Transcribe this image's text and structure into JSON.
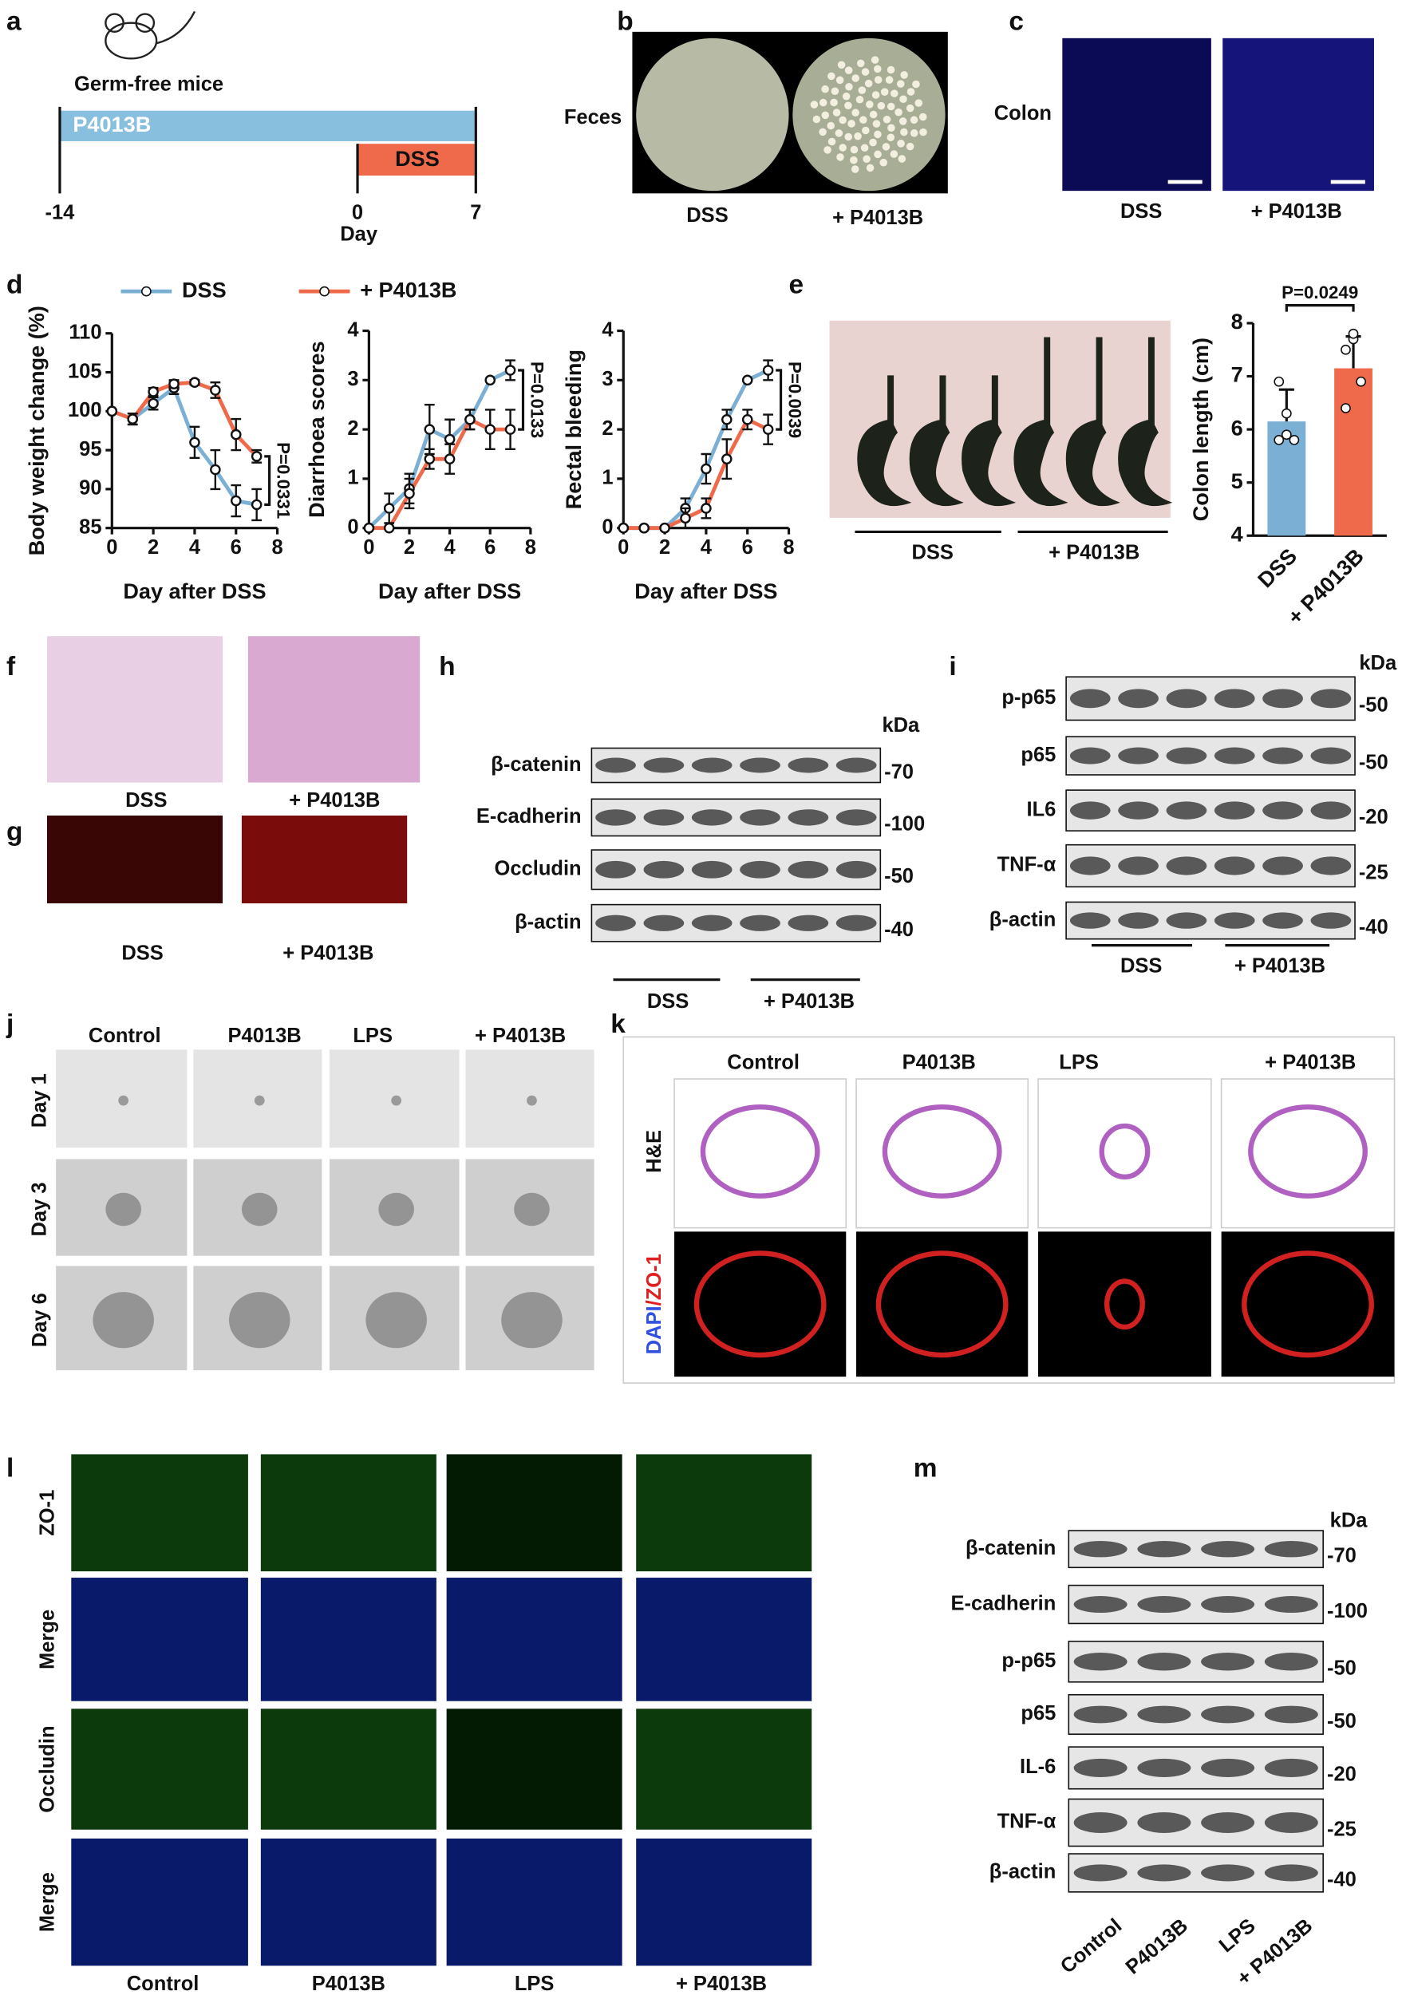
{
  "panel_labels": [
    "a",
    "b",
    "c",
    "d",
    "e",
    "f",
    "g",
    "h",
    "i",
    "j",
    "k",
    "l",
    "m"
  ],
  "a": {
    "title": "Germ-free mice",
    "bar1": "P4013B",
    "bar2": "DSS",
    "ticks": [
      "-14",
      "0",
      "7"
    ],
    "axis": "Day"
  },
  "b": {
    "row": "Feces",
    "cols": [
      "DSS",
      "+ P4013B"
    ]
  },
  "c": {
    "row": "Colon",
    "cols": [
      "DSS",
      "+ P4013B"
    ]
  },
  "e": {
    "groups": [
      "DSS",
      "+ P4013B"
    ]
  },
  "f": {
    "cols": [
      "DSS",
      "+ P4013B"
    ]
  },
  "g": {
    "cols": [
      "DSS",
      "+ P4013B"
    ]
  },
  "h": {
    "unit": "kDa",
    "rows": [
      {
        "name": "β-catenin",
        "kda": "-70"
      },
      {
        "name": "E-cadherin",
        "kda": "-100"
      },
      {
        "name": "Occludin",
        "kda": "-50"
      },
      {
        "name": "β-actin",
        "kda": "-40"
      }
    ],
    "groups": [
      "DSS",
      "+ P4013B"
    ]
  },
  "i": {
    "unit": "kDa",
    "rows": [
      {
        "name": "p-p65",
        "kda": "-50"
      },
      {
        "name": "p65",
        "kda": "-50"
      },
      {
        "name": "IL6",
        "kda": "-20"
      },
      {
        "name": "TNF-α",
        "kda": "-25"
      },
      {
        "name": "β-actin",
        "kda": "-40"
      }
    ],
    "groups": [
      "DSS",
      "+ P4013B"
    ]
  },
  "j": {
    "cols": [
      "Control",
      "P4013B",
      "LPS",
      "+ P4013B"
    ],
    "rows": [
      "Day 1",
      "Day 3",
      "Day 6"
    ]
  },
  "k": {
    "cols": [
      "Control",
      "P4013B",
      "LPS",
      "+ P4013B"
    ],
    "rows": [
      "H&E"
    ],
    "stain": [
      "DAPI",
      "/ZO-1"
    ]
  },
  "l": {
    "rows": [
      "ZO-1",
      "Merge",
      "Occludin",
      "Merge"
    ],
    "cols": [
      "Control",
      "P4013B",
      "LPS",
      "+ P4013B"
    ]
  },
  "m": {
    "unit": "kDa",
    "rows": [
      {
        "name": "β-catenin",
        "kda": "-70"
      },
      {
        "name": "E-cadherin",
        "kda": "-100"
      },
      {
        "name": "p-p65",
        "kda": "-50"
      },
      {
        "name": "p65",
        "kda": "-50"
      },
      {
        "name": "IL-6",
        "kda": "-20"
      },
      {
        "name": "TNF-α",
        "kda": "-25"
      },
      {
        "name": "β-actin",
        "kda": "-40"
      }
    ],
    "lanes": [
      "Control",
      "P4013B",
      "LPS",
      "+ P4013B"
    ]
  },
  "chart_data": [
    {
      "type": "line",
      "ylabel": "Body weight change (%)",
      "xlabel": "Day after DSS",
      "annotation": "P=0.0331",
      "x": [
        0,
        1,
        2,
        3,
        4,
        5,
        6,
        7
      ],
      "xlim": [
        0,
        8
      ],
      "xticks": [
        0,
        2,
        4,
        6,
        8
      ],
      "ylim": [
        85,
        110
      ],
      "yticks": [
        85,
        90,
        95,
        100,
        105,
        110
      ],
      "series": [
        {
          "name": "DSS",
          "color": "#7bafd4",
          "values": [
            100,
            99,
            101,
            103,
            96,
            92.5,
            88.5,
            88
          ],
          "errors": [
            0,
            0.7,
            0.8,
            0.8,
            2,
            2.5,
            2,
            2
          ]
        },
        {
          "name": "+ P4013B",
          "color": "#ef6a4b",
          "values": [
            100,
            99,
            102.5,
            103.5,
            103.7,
            102.7,
            97,
            94.2
          ],
          "errors": [
            0,
            0.7,
            0.5,
            0.5,
            0.3,
            1,
            2,
            0.8
          ]
        }
      ]
    },
    {
      "type": "line",
      "ylabel": "Diarrhoea scores",
      "xlabel": "Day after DSS",
      "annotation": "P=0.0133",
      "x": [
        0,
        1,
        2,
        3,
        4,
        5,
        6,
        7
      ],
      "xlim": [
        0,
        8
      ],
      "xticks": [
        0,
        2,
        4,
        6,
        8
      ],
      "ylim": [
        0,
        4
      ],
      "yticks": [
        0,
        1,
        2,
        3,
        4
      ],
      "series": [
        {
          "name": "DSS",
          "color": "#7bafd4",
          "values": [
            0,
            0.4,
            0.8,
            2,
            1.8,
            2.2,
            3,
            3.2
          ],
          "errors": [
            0,
            0.3,
            0.3,
            0.5,
            0.4,
            0.2,
            0,
            0.2
          ]
        },
        {
          "name": "+ P4013B",
          "color": "#ef6a4b",
          "values": [
            0,
            0,
            0.7,
            1.4,
            1.4,
            2.2,
            2,
            2
          ],
          "errors": [
            0,
            0,
            0.3,
            0.2,
            0.3,
            0.2,
            0.4,
            0.4
          ]
        }
      ]
    },
    {
      "type": "line",
      "ylabel": "Rectal bleeding",
      "xlabel": "Day after DSS",
      "annotation": "P=0.0039",
      "x": [
        0,
        1,
        2,
        3,
        4,
        5,
        6,
        7
      ],
      "xlim": [
        0,
        8
      ],
      "xticks": [
        0,
        2,
        4,
        6,
        8
      ],
      "ylim": [
        0,
        4
      ],
      "yticks": [
        0,
        1,
        2,
        3,
        4
      ],
      "series": [
        {
          "name": "DSS",
          "color": "#7bafd4",
          "values": [
            0,
            0,
            0,
            0.4,
            1.2,
            2.2,
            3,
            3.2
          ],
          "errors": [
            0,
            0,
            0,
            0.2,
            0.3,
            0.2,
            0,
            0.2
          ]
        },
        {
          "name": "+ P4013B",
          "color": "#ef6a4b",
          "values": [
            0,
            0,
            0,
            0.2,
            0.4,
            1.4,
            2.2,
            2
          ],
          "errors": [
            0,
            0,
            0,
            0.2,
            0.2,
            0.4,
            0.2,
            0.3
          ]
        }
      ]
    },
    {
      "type": "bar",
      "ylabel": "Colon length (cm)",
      "annotation": "P=0.0249",
      "categories": [
        "DSS",
        "+ P4013B"
      ],
      "values": [
        6.15,
        7.15
      ],
      "errors": [
        0.6,
        0.6
      ],
      "colors": [
        "#7bafd4",
        "#ef6a4b"
      ],
      "points": [
        [
          6.9,
          6.3,
          5.8,
          5.8,
          5.9
        ],
        [
          7.5,
          7.7,
          6.9,
          6.4,
          7.8
        ]
      ],
      "ylim": [
        4,
        8
      ],
      "yticks": [
        4,
        5,
        6,
        7,
        8
      ]
    }
  ]
}
